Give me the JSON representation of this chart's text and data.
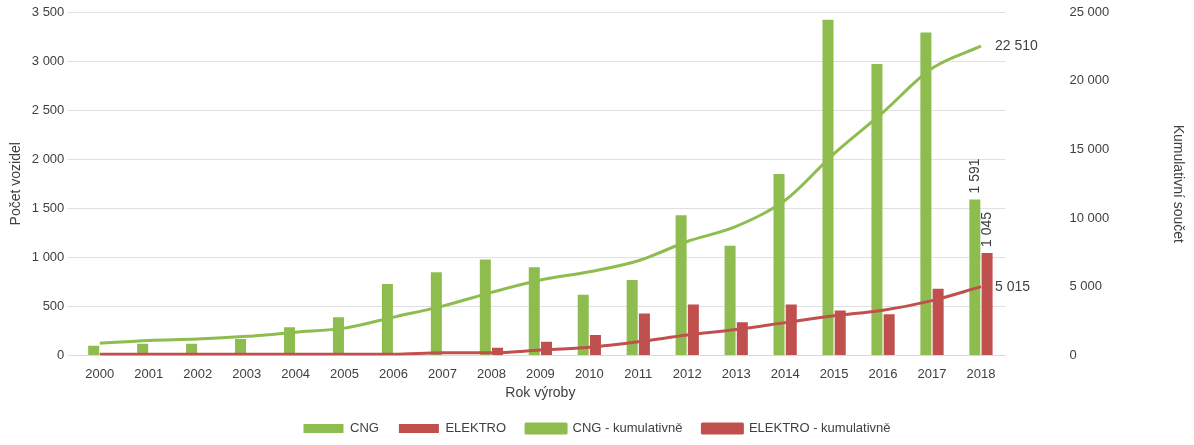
{
  "chart_data": {
    "type": "bar",
    "xlabel": "Rok výroby",
    "ylabel": "Počet vozidel",
    "y2label": "Kumulativní součet",
    "categories": [
      "2000",
      "2001",
      "2002",
      "2003",
      "2004",
      "2005",
      "2006",
      "2007",
      "2008",
      "2009",
      "2010",
      "2011",
      "2012",
      "2013",
      "2014",
      "2015",
      "2016",
      "2017",
      "2018"
    ],
    "series": [
      {
        "name": "CNG",
        "color": "#8fbc4f",
        "values": [
          100,
          120,
          120,
          170,
          290,
          390,
          730,
          850,
          980,
          900,
          620,
          770,
          1430,
          1120,
          1850,
          3420,
          2970,
          3290,
          1591
        ],
        "value_labels": [
          null,
          null,
          null,
          null,
          null,
          null,
          null,
          null,
          null,
          null,
          null,
          null,
          null,
          null,
          null,
          null,
          null,
          null,
          "1 591"
        ]
      },
      {
        "name": "ELEKTRO",
        "color": "#c0504d",
        "values": [
          null,
          null,
          null,
          null,
          null,
          null,
          null,
          null,
          80,
          140,
          210,
          430,
          520,
          340,
          520,
          460,
          420,
          680,
          1045
        ],
        "value_labels": [
          null,
          null,
          null,
          null,
          null,
          null,
          null,
          null,
          null,
          null,
          null,
          null,
          null,
          null,
          null,
          null,
          null,
          null,
          "1 045"
        ]
      },
      {
        "name": "CNG - kumulativně",
        "type": "line",
        "axis": "y2",
        "color": "#8fbc4f",
        "values": [
          900,
          1100,
          1200,
          1400,
          1700,
          2000,
          2800,
          3600,
          4600,
          5500,
          6100,
          6900,
          8300,
          9400,
          11300,
          14700,
          17700,
          20900,
          22510
        ],
        "value_labels": [
          null,
          null,
          null,
          null,
          null,
          null,
          null,
          null,
          null,
          null,
          null,
          null,
          null,
          null,
          null,
          null,
          null,
          null,
          "22 510"
        ]
      },
      {
        "name": "ELEKTRO - kumulativně",
        "type": "line",
        "axis": "y2",
        "color": "#c0504d",
        "values": [
          100,
          100,
          100,
          100,
          100,
          100,
          100,
          200,
          200,
          400,
          600,
          1000,
          1500,
          1900,
          2400,
          2900,
          3300,
          4000,
          5015
        ],
        "value_labels": [
          null,
          null,
          null,
          null,
          null,
          null,
          null,
          null,
          null,
          null,
          null,
          null,
          null,
          null,
          null,
          null,
          null,
          null,
          "5 015"
        ]
      }
    ],
    "ylim": [
      0,
      3500
    ],
    "yticks": [
      0,
      500,
      {
        "value": 1000,
        "label": "1 000"
      },
      {
        "value": 1500,
        "label": "1 500"
      },
      {
        "value": 2000,
        "label": "2 000"
      },
      {
        "value": 2500,
        "label": "2 500"
      },
      {
        "value": 3000,
        "label": "3 000"
      },
      {
        "value": 3500,
        "label": "3 500"
      }
    ],
    "y2lim": [
      0,
      25000
    ],
    "y2ticks": [
      0,
      {
        "value": 5000,
        "label": "5 000"
      },
      {
        "value": 10000,
        "label": "10 000"
      },
      {
        "value": 15000,
        "label": "15 000"
      },
      {
        "value": 20000,
        "label": "20 000"
      },
      {
        "value": 25000,
        "label": "25 000"
      }
    ],
    "grid": "y",
    "legend": "bottom",
    "marker": "none",
    "line_style": "solid"
  }
}
